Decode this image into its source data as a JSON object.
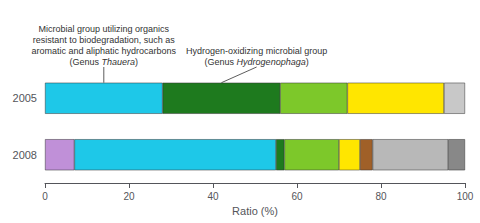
{
  "chart_data": {
    "type": "bar",
    "orientation": "horizontal",
    "stacked": true,
    "categories": [
      "2005",
      "2008"
    ],
    "series": [
      {
        "values": [
          28,
          7
        ],
        "colors": [
          "#1EC8E8",
          "#C090D8"
        ]
      },
      {
        "values": [
          28,
          48
        ],
        "colors": [
          "#1E7A1E",
          "#1EC8E8"
        ]
      },
      {
        "values": [
          16,
          2
        ],
        "colors": [
          "#7DC82A",
          "#1E7A1E"
        ]
      },
      {
        "values": [
          23,
          13
        ],
        "colors": [
          "#FFE600",
          "#7DC82A"
        ]
      },
      {
        "values": [
          5,
          5
        ],
        "colors": [
          "#C8C8C8",
          "#FFE600"
        ]
      },
      {
        "values": [
          null,
          3
        ],
        "colors": [
          null,
          "#A06028"
        ]
      },
      {
        "values": [
          null,
          18
        ],
        "colors": [
          null,
          "#B8B8B8"
        ]
      },
      {
        "values": [
          null,
          4
        ],
        "colors": [
          null,
          "#888888"
        ]
      }
    ],
    "xlabel": "Ratio (%)",
    "xlim": [
      0,
      100
    ],
    "xticks": [
      0,
      20,
      40,
      60,
      80,
      100
    ],
    "grid": false,
    "annotations": [
      {
        "text": "Microbial group utilizing organics\nresistant to biodegradation, such as\naromatic and aliphatic hydrocarbons\n(Genus Thauera)",
        "italic": "Thauera",
        "x": 14,
        "category": "2005"
      },
      {
        "text": "Hydrogen-oxidizing microbial group\n(Genus Hydrogenophaga)",
        "italic": "Hydrogenophaga",
        "x": 42,
        "category": "2005"
      }
    ]
  }
}
